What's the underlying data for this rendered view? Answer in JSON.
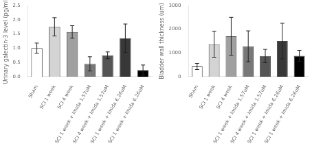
{
  "chart_data": [
    {
      "type": "bar",
      "ylabel": "Urinary galectin-3 level (pg/ml)",
      "categories": [
        "Sham",
        "SCI 1 week",
        "SCI 4 week",
        "SCI 1 week + Imida 1.57uM",
        "SCI 4 week + Imida 1.57uM",
        "SCI 1 week + Imida 6.26uM",
        "SCI 1 week + Imida 6.26uM"
      ],
      "values": [
        1.0,
        1.75,
        1.57,
        0.45,
        0.75,
        1.35,
        0.23
      ],
      "errors": [
        0.18,
        0.32,
        0.22,
        0.25,
        0.12,
        0.5,
        0.18
      ],
      "colors": [
        "#ffffff",
        "#d4d4d4",
        "#a0a0a0",
        "#787878",
        "#555555",
        "#383838",
        "#000000"
      ],
      "ylim": [
        0,
        2.5
      ],
      "yticks": [
        {
          "value": 0,
          "label": "0.0"
        },
        0.5,
        {
          "value": 1,
          "label": "1.0"
        },
        1.5,
        {
          "value": 2,
          "label": "2.0"
        },
        2.5
      ],
      "grid": false
    },
    {
      "type": "bar",
      "ylabel": "Bladder wall thickness (um)",
      "categories": [
        "Sham",
        "SCI 1 week",
        "SCI 4 week",
        "SCI 1 week + Imida 1.57uM",
        "SCI 4 week + Imida 1.57uM",
        "SCI 1 week + Imida 6.26uM",
        "SCI 1 week + Imida 6.26uM"
      ],
      "values": [
        430,
        1370,
        1700,
        1280,
        870,
        1500,
        880
      ],
      "errors": [
        130,
        550,
        800,
        650,
        280,
        750,
        230
      ],
      "colors": [
        "#ffffff",
        "#d4d4d4",
        "#a0a0a0",
        "#787878",
        "#555555",
        "#383838",
        "#000000"
      ],
      "ylim": [
        0,
        3000
      ],
      "yticks": [
        0,
        1000,
        2000,
        3000
      ],
      "grid": false
    }
  ]
}
